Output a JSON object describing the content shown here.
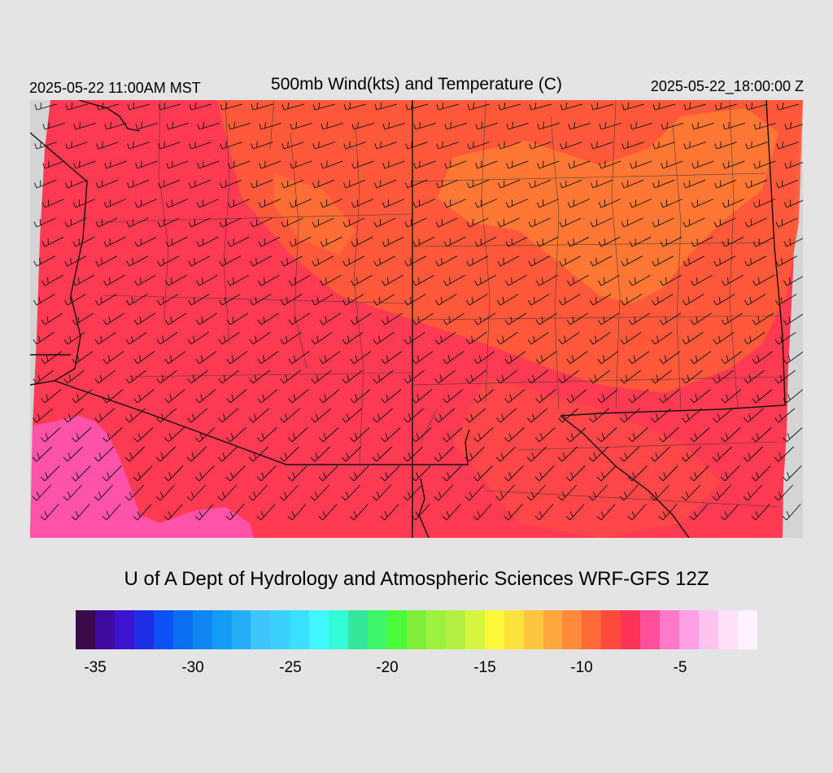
{
  "header": {
    "left": "2025-05-22 11:00AM MST",
    "title": "500mb Wind(kts) and Temperature (C)",
    "right": "2025-05-22_18:00:00 Z"
  },
  "credit": "U of A Dept of Hydrology and Atmospheric Sciences WRF-GFS 12Z",
  "legend": {
    "colors": [
      "#3b0a4a",
      "#3f0a9e",
      "#3a14cf",
      "#1e2ee6",
      "#0b52f5",
      "#0b6ff2",
      "#0f86f2",
      "#129cf5",
      "#25aef7",
      "#3fc4fb",
      "#3bd0ff",
      "#39e0ff",
      "#3ff7ff",
      "#33fbd6",
      "#33e69a",
      "#3ff56a",
      "#4bfa38",
      "#80ee3a",
      "#9cf03e",
      "#b6ef44",
      "#d5f53f",
      "#fbf839",
      "#fce23c",
      "#fdc63f",
      "#fea83d",
      "#fe8a3a",
      "#ff6a38",
      "#ff4b3e",
      "#ff3359",
      "#ff4f9a",
      "#ff79c9",
      "#ffa0e6",
      "#ffc3f0",
      "#ffe0f8",
      "#fff2fd"
    ],
    "ticks": [
      {
        "label": "-35",
        "x": 117
      },
      {
        "label": "-30",
        "x": 237
      },
      {
        "label": "-25",
        "x": 357
      },
      {
        "label": "-20",
        "x": 476
      },
      {
        "label": "-15",
        "x": 596
      },
      {
        "label": "-10",
        "x": 715
      },
      {
        "label": "-5",
        "x": 836
      }
    ]
  },
  "map": {
    "colors": {
      "main": "#ff3a52",
      "warm": "#ff5a3a",
      "warmer": "#ff7b35",
      "cold": "#ff52a8",
      "background": "#d4d4d4"
    }
  }
}
